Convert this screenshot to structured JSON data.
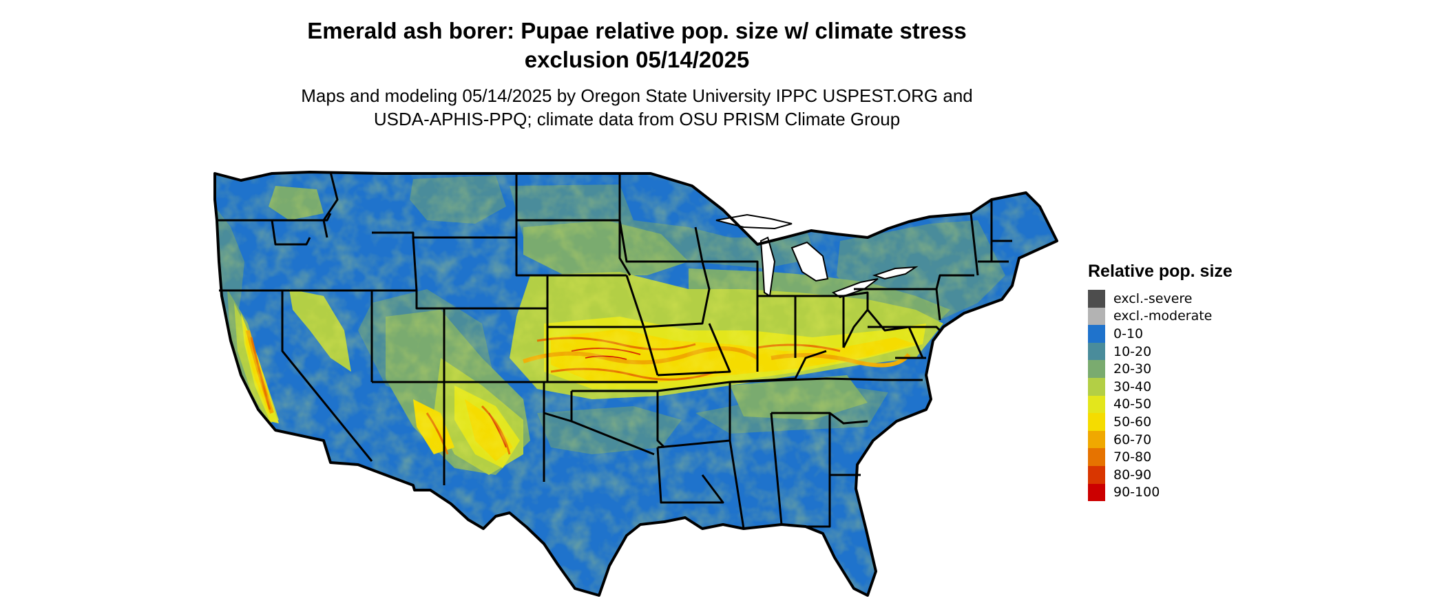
{
  "title_line1": "Emerald ash borer: Pupae relative pop. size w/ climate stress",
  "title_line2": "exclusion 05/14/2025",
  "subtitle_line1": "Maps and modeling 05/14/2025 by Oregon State University IPPC USPEST.ORG and",
  "subtitle_line2": "USDA-APHIS-PPQ; climate data from OSU PRISM Climate Group",
  "legend": {
    "title": "Relative pop. size",
    "items": [
      {
        "label": "excl.-severe",
        "color": "#4d4d4d"
      },
      {
        "label": "excl.-moderate",
        "color": "#b3b3b3"
      },
      {
        "label": "0-10",
        "color": "#1f73cc"
      },
      {
        "label": "10-20",
        "color": "#4a8c9b"
      },
      {
        "label": "20-30",
        "color": "#7aab6f"
      },
      {
        "label": "30-40",
        "color": "#b3cf45"
      },
      {
        "label": "40-50",
        "color": "#e3e61c"
      },
      {
        "label": "50-60",
        "color": "#f5dc00"
      },
      {
        "label": "60-70",
        "color": "#f0a800"
      },
      {
        "label": "70-80",
        "color": "#e67300"
      },
      {
        "label": "80-90",
        "color": "#d93600"
      },
      {
        "label": "90-100",
        "color": "#cc0000"
      }
    ]
  }
}
